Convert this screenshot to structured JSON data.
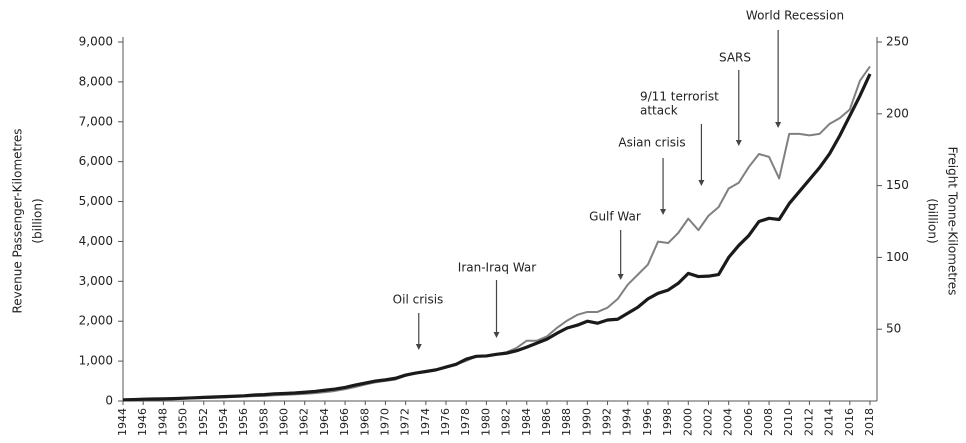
{
  "chart_data": {
    "type": "line",
    "x_label": null,
    "y_label": [
      "Revenue Passenger-Kilometres",
      "(billion)"
    ],
    "y2_label": [
      "Freight Tonne-Kilometres",
      "(billion)"
    ],
    "x": [
      1944,
      1945,
      1946,
      1947,
      1948,
      1949,
      1950,
      1951,
      1952,
      1953,
      1954,
      1955,
      1956,
      1957,
      1958,
      1959,
      1960,
      1961,
      1962,
      1963,
      1964,
      1965,
      1966,
      1967,
      1968,
      1969,
      1970,
      1971,
      1972,
      1973,
      1974,
      1975,
      1976,
      1977,
      1978,
      1979,
      1980,
      1981,
      1982,
      1983,
      1984,
      1985,
      1986,
      1987,
      1988,
      1989,
      1990,
      1991,
      1992,
      1993,
      1994,
      1995,
      1996,
      1997,
      1998,
      1999,
      2000,
      2001,
      2002,
      2003,
      2004,
      2005,
      2006,
      2007,
      2008,
      2009,
      2010,
      2011,
      2012,
      2013,
      2014,
      2015,
      2016,
      2017,
      2018
    ],
    "xlim": [
      1944,
      2018
    ],
    "xticks": [
      1944,
      1946,
      1948,
      1950,
      1952,
      1954,
      1956,
      1958,
      1960,
      1962,
      1964,
      1966,
      1968,
      1970,
      1972,
      1974,
      1976,
      1978,
      1980,
      1982,
      1984,
      1986,
      1988,
      1990,
      1992,
      1994,
      1996,
      1998,
      2000,
      2002,
      2004,
      2006,
      2008,
      2010,
      2012,
      2014,
      2016,
      2018
    ],
    "ylim": [
      0,
      9000
    ],
    "yticks": [
      0,
      {
        "value": 1000,
        "label": "1,000"
      },
      {
        "value": 2000,
        "label": "2,000"
      },
      {
        "value": 3000,
        "label": "3,000"
      },
      {
        "value": 4000,
        "label": "4,000"
      },
      {
        "value": 5000,
        "label": "5,000"
      },
      {
        "value": 6000,
        "label": "6,000"
      },
      {
        "value": 7000,
        "label": "7,000"
      },
      {
        "value": 8000,
        "label": "8,000"
      },
      {
        "value": 9000,
        "label": "9,000"
      }
    ],
    "y2lim": [
      0,
      250
    ],
    "y2ticks": [
      50,
      100,
      150,
      200,
      250
    ],
    "series": [
      {
        "color": "#808080",
        "axis": "y2",
        "width": 2,
        "values": [
          0.5,
          0.6,
          0.8,
          1,
          1.2,
          1.4,
          1.6,
          1.9,
          2.1,
          2.3,
          2.5,
          2.8,
          3.1,
          3.4,
          3.6,
          4,
          4.3,
          4.6,
          5,
          5.5,
          6.2,
          7,
          8.3,
          9.7,
          11.5,
          13,
          14,
          15,
          17.5,
          19.5,
          20.5,
          21.5,
          23.5,
          25.5,
          28,
          31,
          31.5,
          32.5,
          34,
          37,
          42,
          42,
          45,
          51,
          56,
          60,
          62,
          62,
          65,
          71,
          81,
          88,
          95,
          111,
          110,
          117,
          127,
          119,
          129,
          135,
          148,
          152,
          163,
          172,
          170,
          155,
          186,
          186,
          185,
          186,
          193,
          197,
          203,
          223,
          233
        ]
      },
      {
        "color": "#1a1a1a",
        "axis": "y",
        "width": 3.2,
        "values": [
          30,
          35,
          45,
          50,
          55,
          60,
          70,
          80,
          90,
          100,
          110,
          120,
          130,
          150,
          160,
          180,
          190,
          200,
          220,
          240,
          270,
          300,
          340,
          400,
          450,
          500,
          530,
          570,
          650,
          700,
          740,
          780,
          850,
          920,
          1050,
          1120,
          1130,
          1170,
          1200,
          1260,
          1350,
          1450,
          1550,
          1700,
          1830,
          1900,
          2000,
          1950,
          2030,
          2050,
          2200,
          2350,
          2560,
          2700,
          2780,
          2950,
          3200,
          3120,
          3130,
          3170,
          3600,
          3900,
          4150,
          4500,
          4580,
          4550,
          4950,
          5250,
          5550,
          5850,
          6200,
          6650,
          7150,
          7650,
          8200
        ]
      }
    ],
    "annotations": [
      {
        "lines": [
          "Oil crisis"
        ],
        "x": 1973.3
      },
      {
        "lines": [
          "Iran-Iraq War"
        ],
        "x": 1981
      },
      {
        "lines": [
          "Gulf War"
        ],
        "x": 1993.3
      },
      {
        "lines": [
          "Asian crisis"
        ],
        "x": 1997.5
      },
      {
        "lines": [
          "9/11 terrorist",
          "attack"
        ],
        "x": 2001.3
      },
      {
        "lines": [
          "SARS"
        ],
        "x": 2005
      },
      {
        "lines": [
          "World Recession"
        ],
        "x": 2008.9
      }
    ]
  }
}
